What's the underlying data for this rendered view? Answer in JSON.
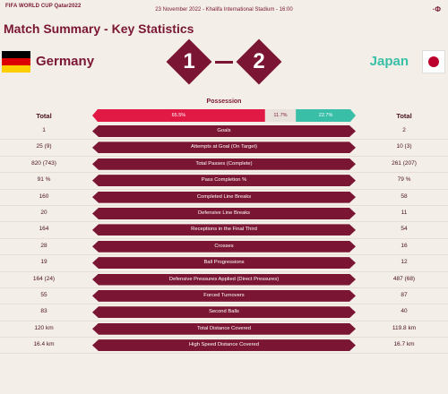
{
  "header": {
    "brand": "FIFA WORLD CUP Qatar2022",
    "match_info": "23 November 2022 - Khalifa International Stadium - 16:00",
    "title": "Match Summary - Key Statistics",
    "corner": "·Φ"
  },
  "score": {
    "home_team": "Germany",
    "away_team": "Japan",
    "home_score": "1",
    "away_score": "2"
  },
  "possession": {
    "label": "Possession",
    "total_label_home": "Total",
    "total_label_away": "Total",
    "home_pct": "65.5%",
    "mid_pct": "11.7%",
    "away_pct": "22.7%",
    "home_value": 65.5,
    "mid_value": 11.7,
    "away_value": 22.7
  },
  "colors": {
    "brand": "#7a1634",
    "home": "#e01a45",
    "away": "#39bfa8",
    "contest": "#e9e2dc"
  },
  "stats": [
    {
      "label": "Goals",
      "home": "1",
      "away": "2"
    },
    {
      "label": "Attempts at Goal (On Target)",
      "home": "25 (9)",
      "away": "10 (3)"
    },
    {
      "label": "Total Passes (Complete)",
      "home": "820 (743)",
      "away": "261 (207)"
    },
    {
      "label": "Pass Completion %",
      "home": "91 %",
      "away": "79 %"
    },
    {
      "label": "Completed Line Breaks",
      "home": "160",
      "away": "58"
    },
    {
      "label": "Defensive Line Breaks",
      "home": "20",
      "away": "11"
    },
    {
      "label": "Receptions in the Final Third",
      "home": "164",
      "away": "54"
    },
    {
      "label": "Crosses",
      "home": "28",
      "away": "16"
    },
    {
      "label": "Ball Progressions",
      "home": "19",
      "away": "12"
    },
    {
      "label": "Defensive Pressures Applied (Direct Pressures)",
      "home": "164 (24)",
      "away": "487 (68)"
    },
    {
      "label": "Forced Turnovers",
      "home": "55",
      "away": "87"
    },
    {
      "label": "Second Balls",
      "home": "83",
      "away": "40"
    },
    {
      "label": "Total Distance Covered",
      "home": "120 km",
      "away": "119.8 km"
    },
    {
      "label": "High Speed Distance Covered",
      "home": "16.4 km",
      "away": "16.7 km"
    }
  ]
}
